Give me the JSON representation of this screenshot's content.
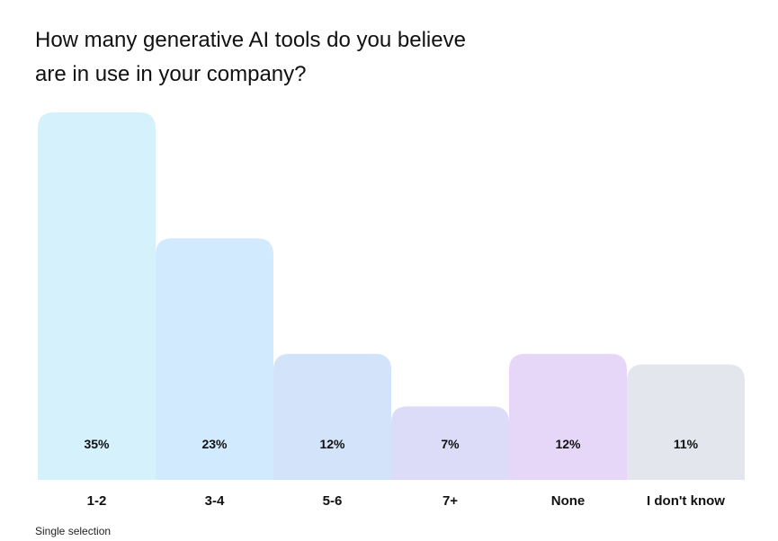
{
  "chart_data": {
    "type": "bar",
    "title": "How many generative AI tools do you believe are in use in your company?",
    "categories": [
      "1-2",
      "3-4",
      "5-6",
      "7+",
      "None",
      "I don't know"
    ],
    "values": [
      35,
      23,
      12,
      7,
      12,
      11
    ],
    "value_labels": [
      "35%",
      "23%",
      "12%",
      "7%",
      "12%",
      "11%"
    ],
    "unit": "%",
    "ylim": [
      0,
      35
    ],
    "grid": false,
    "legend": "none",
    "bar_colors": [
      "#d4f1fc",
      "#d2eafd",
      "#d3e3fa",
      "#dcdcf8",
      "#e6d7f8",
      "#e4e6ee"
    ]
  },
  "footnote": "Single selection"
}
